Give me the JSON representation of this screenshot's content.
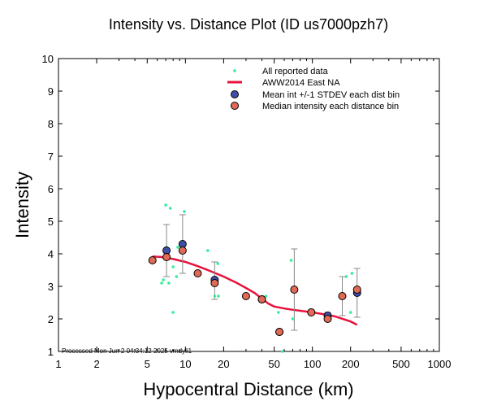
{
  "chart_data": {
    "type": "scatter",
    "title": "Intensity vs. Distance Plot (ID us7000pzh7)",
    "xlabel": "Hypocentral Distance (km)",
    "ylabel": "Intensity",
    "xscale": "log",
    "xlim": [
      1,
      1000
    ],
    "ylim": [
      1,
      10
    ],
    "xticks": [
      1,
      2,
      5,
      10,
      20,
      50,
      100,
      200,
      500,
      1000
    ],
    "xtick_labels": [
      "1",
      "2",
      "5",
      "10",
      "20",
      "50",
      "100",
      "200",
      "500",
      "1000"
    ],
    "yticks": [
      1,
      2,
      3,
      4,
      5,
      6,
      7,
      8,
      9,
      10
    ],
    "ytick_labels": [
      "1",
      "2",
      "3",
      "4",
      "5",
      "6",
      "7",
      "8",
      "9",
      "10"
    ],
    "legend": {
      "position": "top-right",
      "entries": [
        {
          "label": "All reported data",
          "kind": "reported"
        },
        {
          "label": "AWW2014 East NA",
          "kind": "line"
        },
        {
          "label": "Mean int +/-1 STDEV each dist bin",
          "kind": "mean"
        },
        {
          "label": "Median intensity each distance bin",
          "kind": "median"
        }
      ]
    },
    "reported_points": [
      [
        6.5,
        3.1
      ],
      [
        6.7,
        3.2
      ],
      [
        7.0,
        5.5
      ],
      [
        7.1,
        4.2
      ],
      [
        7.3,
        4.0
      ],
      [
        7.4,
        3.1
      ],
      [
        7.6,
        5.4
      ],
      [
        8.0,
        2.2
      ],
      [
        8.0,
        3.6
      ],
      [
        8.5,
        3.3
      ],
      [
        8.7,
        4.2
      ],
      [
        9.3,
        4.1
      ],
      [
        9.8,
        5.3
      ],
      [
        15.0,
        4.1
      ],
      [
        17.0,
        2.7
      ],
      [
        17.5,
        3.1
      ],
      [
        18.0,
        3.7
      ],
      [
        18.2,
        2.7
      ],
      [
        40.0,
        2.6
      ],
      [
        43.0,
        2.7
      ],
      [
        54.0,
        2.2
      ],
      [
        58.0,
        1.0
      ],
      [
        68.0,
        3.8
      ],
      [
        70.0,
        2.0
      ],
      [
        127.0,
        2.0
      ],
      [
        185.0,
        3.3
      ],
      [
        205.0,
        3.4
      ],
      [
        200.0,
        2.2
      ]
    ],
    "series": [
      {
        "name": "AWW2014 East NA",
        "x": [
          5.5,
          6.5,
          8.0,
          10.0,
          12.5,
          15.0,
          20.0,
          25.0,
          30.0,
          35.0,
          40.0,
          45.0,
          50.0,
          60.0,
          70.0,
          80.0,
          100.0,
          120.0,
          150.0,
          200.0,
          225.0
        ],
        "values": [
          3.92,
          3.9,
          3.84,
          3.75,
          3.62,
          3.5,
          3.3,
          3.12,
          2.95,
          2.8,
          2.62,
          2.47,
          2.38,
          2.32,
          2.28,
          2.25,
          2.2,
          2.15,
          2.08,
          1.92,
          1.82
        ]
      },
      {
        "name": "Mean int +/-1 STDEV each dist bin",
        "x": [
          7.1,
          9.5,
          17.0,
          40.0,
          55.0,
          132.0,
          225.0
        ],
        "values": [
          4.1,
          4.3,
          3.2,
          2.6,
          1.6,
          2.1,
          2.8
        ],
        "err_low": [
          3.3,
          3.4,
          2.6,
          2.6,
          1.6,
          2.0,
          2.05
        ],
        "err_high": [
          4.9,
          5.2,
          3.75,
          2.6,
          1.6,
          2.2,
          3.55
        ]
      },
      {
        "name": "Median intensity each distance bin",
        "x": [
          5.5,
          7.1,
          9.5,
          12.5,
          17.0,
          30.0,
          40.0,
          55.0,
          72.0,
          98.0,
          132.0,
          172.0,
          225.0
        ],
        "values": [
          3.8,
          3.9,
          4.1,
          3.4,
          3.1,
          2.7,
          2.6,
          1.6,
          2.9,
          2.2,
          2.0,
          2.7,
          2.9
        ]
      }
    ],
    "errorbars_extra": [
      {
        "x": 72.0,
        "low": 1.65,
        "high": 4.15
      },
      {
        "x": 172.0,
        "low": 2.1,
        "high": 3.3
      }
    ],
    "colors": {
      "reported": "#33ee99",
      "line": "#e8123c",
      "mean": "#3f4fa8",
      "median": "#e06a55",
      "errorbar": "#888888"
    },
    "footer": "Processed Mon Jun  2 04:34:12 2025 vmdyli1"
  }
}
